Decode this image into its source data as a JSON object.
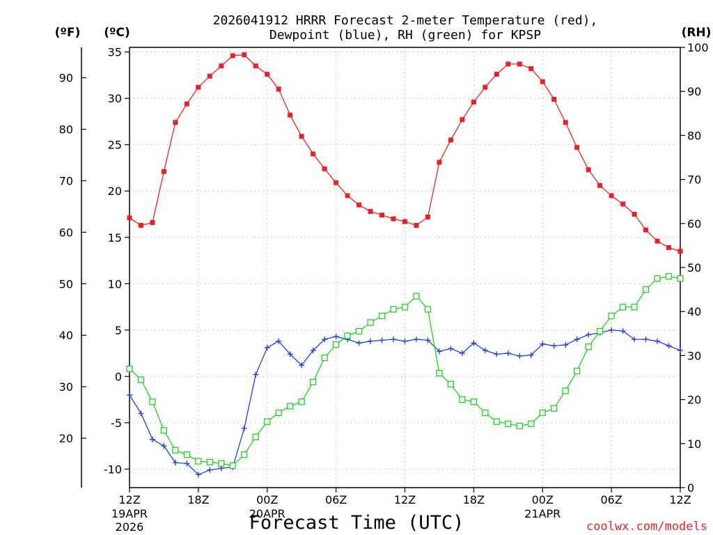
{
  "chart_data": {
    "type": "line",
    "title_lines": [
      "2026041912 HRRR Forecast 2-meter Temperature (red),",
      "Dewpoint (blue), RH (green) for KPSP"
    ],
    "unit_left_f": "(ºF)",
    "unit_left_c": "(ºC)",
    "unit_right": "(RH)",
    "xlabel": "Forecast Time (UTC)",
    "credit": "coolwx.com/models",
    "x_range_hours": [
      0,
      48
    ],
    "c_axis": {
      "range": [
        -12,
        35.5
      ],
      "ticks": [
        35,
        30,
        25,
        20,
        15,
        10,
        5,
        0,
        -5,
        -10
      ]
    },
    "f_axis": {
      "ticks": [
        90,
        80,
        70,
        60,
        50,
        40,
        30,
        20
      ]
    },
    "rh_axis": {
      "range": [
        0,
        100
      ],
      "ticks": [
        100,
        90,
        80,
        70,
        60,
        50,
        40,
        30,
        20,
        10,
        0
      ]
    },
    "x_ticks": [
      {
        "hour": 0,
        "label": "12Z",
        "sub": [
          "19APR",
          "2026"
        ]
      },
      {
        "hour": 6,
        "label": "18Z",
        "sub": []
      },
      {
        "hour": 12,
        "label": "00Z",
        "sub": [
          "20APR"
        ]
      },
      {
        "hour": 18,
        "label": "06Z",
        "sub": []
      },
      {
        "hour": 24,
        "label": "12Z",
        "sub": []
      },
      {
        "hour": 30,
        "label": "18Z",
        "sub": []
      },
      {
        "hour": 36,
        "label": "00Z",
        "sub": [
          "21APR"
        ]
      },
      {
        "hour": 42,
        "label": "06Z",
        "sub": []
      },
      {
        "hour": 48,
        "label": "12Z",
        "sub": []
      }
    ],
    "series": [
      {
        "name": "Temperature",
        "units": "°C",
        "axis": "celsius",
        "color": "#e8202a",
        "marker": "filled-square",
        "values": [
          17.1,
          16.3,
          16.6,
          22.1,
          27.4,
          29.4,
          31.2,
          32.4,
          33.5,
          34.6,
          34.7,
          33.5,
          32.6,
          31.0,
          28.2,
          25.9,
          24.0,
          22.4,
          20.9,
          19.5,
          18.5,
          17.8,
          17.4,
          17.0,
          16.7,
          16.3,
          17.2,
          23.1,
          25.5,
          27.7,
          29.6,
          31.2,
          32.6,
          33.7,
          33.7,
          33.2,
          31.8,
          29.9,
          27.4,
          24.7,
          22.3,
          20.6,
          19.5,
          18.6,
          17.5,
          15.8,
          14.6,
          13.9,
          13.5
        ],
        "values_note": "hourly, hour 0 through hour 48"
      },
      {
        "name": "Dewpoint",
        "units": "°C",
        "axis": "celsius",
        "color": "#2040e0",
        "marker": "plus",
        "values": [
          -2.0,
          -4.0,
          -6.8,
          -7.5,
          -9.3,
          -9.4,
          -10.6,
          -10.1,
          -9.9,
          -9.8,
          -5.6,
          0.2,
          3.1,
          3.8,
          2.4,
          1.2,
          2.8,
          4.0,
          4.3,
          4.0,
          3.6,
          3.8,
          3.9,
          4.0,
          3.8,
          4.0,
          3.9,
          2.7,
          3.0,
          2.5,
          3.6,
          2.8,
          2.4,
          2.5,
          2.2,
          2.3,
          3.5,
          3.3,
          3.4,
          4.0,
          4.5,
          4.7,
          5.0,
          4.9,
          4.0,
          4.0,
          3.8,
          3.3,
          2.8
        ],
        "values_note": "hourly, hour 0 through hour 48"
      },
      {
        "name": "RH",
        "units": "%",
        "axis": "rh",
        "color": "#20d020",
        "marker": "open-square",
        "values": [
          27,
          24.5,
          19.5,
          13,
          8.5,
          7.5,
          6,
          5.8,
          5.5,
          5,
          7.5,
          11.5,
          15,
          17,
          18.5,
          19.5,
          24,
          29.5,
          32.5,
          34.5,
          35.5,
          37.5,
          39,
          40.5,
          41,
          43.5,
          40.5,
          26,
          23.5,
          20,
          19.5,
          17,
          15,
          14.5,
          14,
          14.5,
          17,
          18,
          22,
          26.5,
          32,
          35.5,
          39,
          41,
          41,
          45,
          47.5,
          48,
          47.5
        ],
        "values_note": "hourly, hour 0 through hour 48"
      }
    ]
  }
}
